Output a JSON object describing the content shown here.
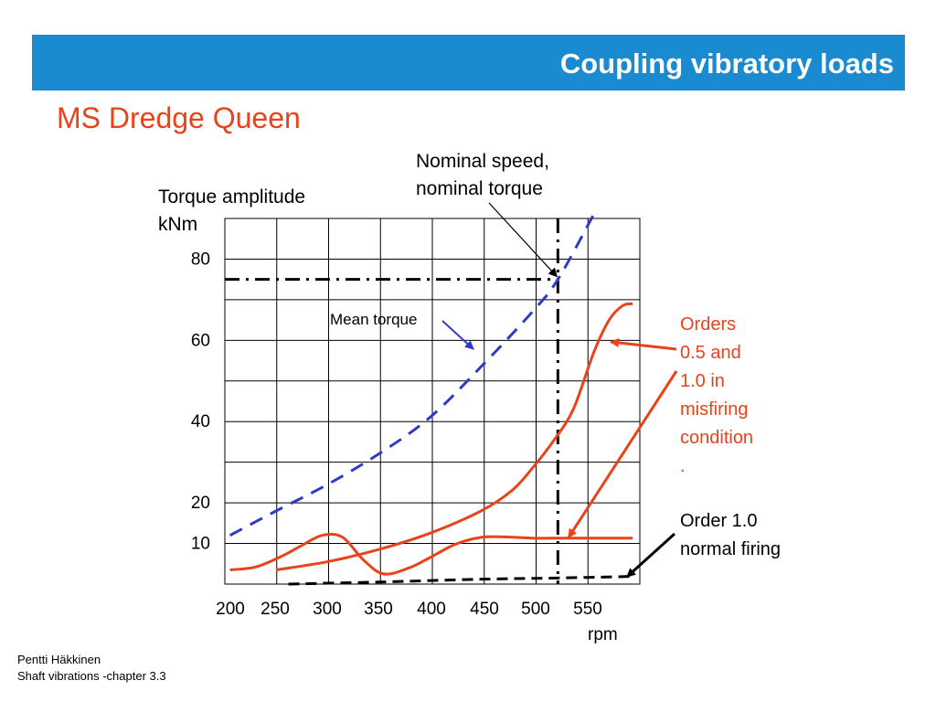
{
  "slide_title": "Coupling vibratory loads",
  "subtitle": "MS Dredge Queen",
  "footer": {
    "author": "Pentti Häkkinen",
    "course": "Shaft vibrations  -chapter 3.3"
  },
  "chart_data": {
    "type": "line",
    "ylabel_line1": "Torque amplitude",
    "ylabel_line2": "kNm",
    "xlabel": "rpm",
    "xlim": [
      200,
      605
    ],
    "ylim": [
      0,
      90
    ],
    "x_ticks": [
      "200",
      "250",
      "300",
      "350",
      "400",
      "450",
      "500",
      "550"
    ],
    "y_ticks": [
      "10",
      "20",
      "40",
      "60",
      "80"
    ],
    "grid": true,
    "series": [
      {
        "name": "Mean torque",
        "color": "#2e3bc4",
        "style": "dashed",
        "x": [
          205,
          250,
          300,
          350,
          400,
          450,
          500,
          525,
          560
        ],
        "y": [
          12,
          18,
          24.5,
          32,
          41,
          53.5,
          67,
          75,
          91
        ]
      },
      {
        "name": "Order 1.0 normal firing",
        "color": "#000000",
        "style": "dashed",
        "x": [
          262,
          350,
          450,
          525,
          600
        ],
        "y": [
          0,
          0.5,
          1.2,
          1.5,
          1.9
        ]
      },
      {
        "color": "#e8431a",
        "style": "solid",
        "x": [
          205,
          230,
          255,
          275,
          295,
          315,
          335,
          355,
          380,
          400,
          425,
          450,
          475,
          500,
          520,
          540,
          560,
          575,
          588,
          598
        ],
        "y": [
          3.5,
          4.2,
          6.8,
          9.5,
          12.0,
          11.5,
          6.0,
          2.5,
          4.0,
          6.5,
          9.8,
          11.5,
          11.6,
          11.3,
          11.3,
          11.3,
          11.3,
          11.3,
          11.3,
          11.3
        ]
      },
      {
        "color": "#e8431a",
        "style": "solid",
        "x": [
          250,
          300,
          350,
          400,
          450,
          480,
          500,
          520,
          540,
          560,
          575,
          588,
          598
        ],
        "y": [
          3.5,
          5.5,
          8.5,
          12.5,
          18.0,
          23.0,
          28.5,
          35.0,
          43.0,
          57.0,
          65.0,
          68.5,
          69.0
        ]
      }
    ],
    "annotations": {
      "nominal_line1": "Nominal speed,",
      "nominal_line2": "nominal torque",
      "nominal_point": [
        525,
        75
      ],
      "mean_torque": "Mean torque",
      "orders_misfiring": [
        "Orders",
        "0.5 and",
        "1.0 in",
        "misfiring",
        "condition",
        "."
      ],
      "order_normal": [
        "Order 1.0",
        "normal firing"
      ]
    }
  }
}
